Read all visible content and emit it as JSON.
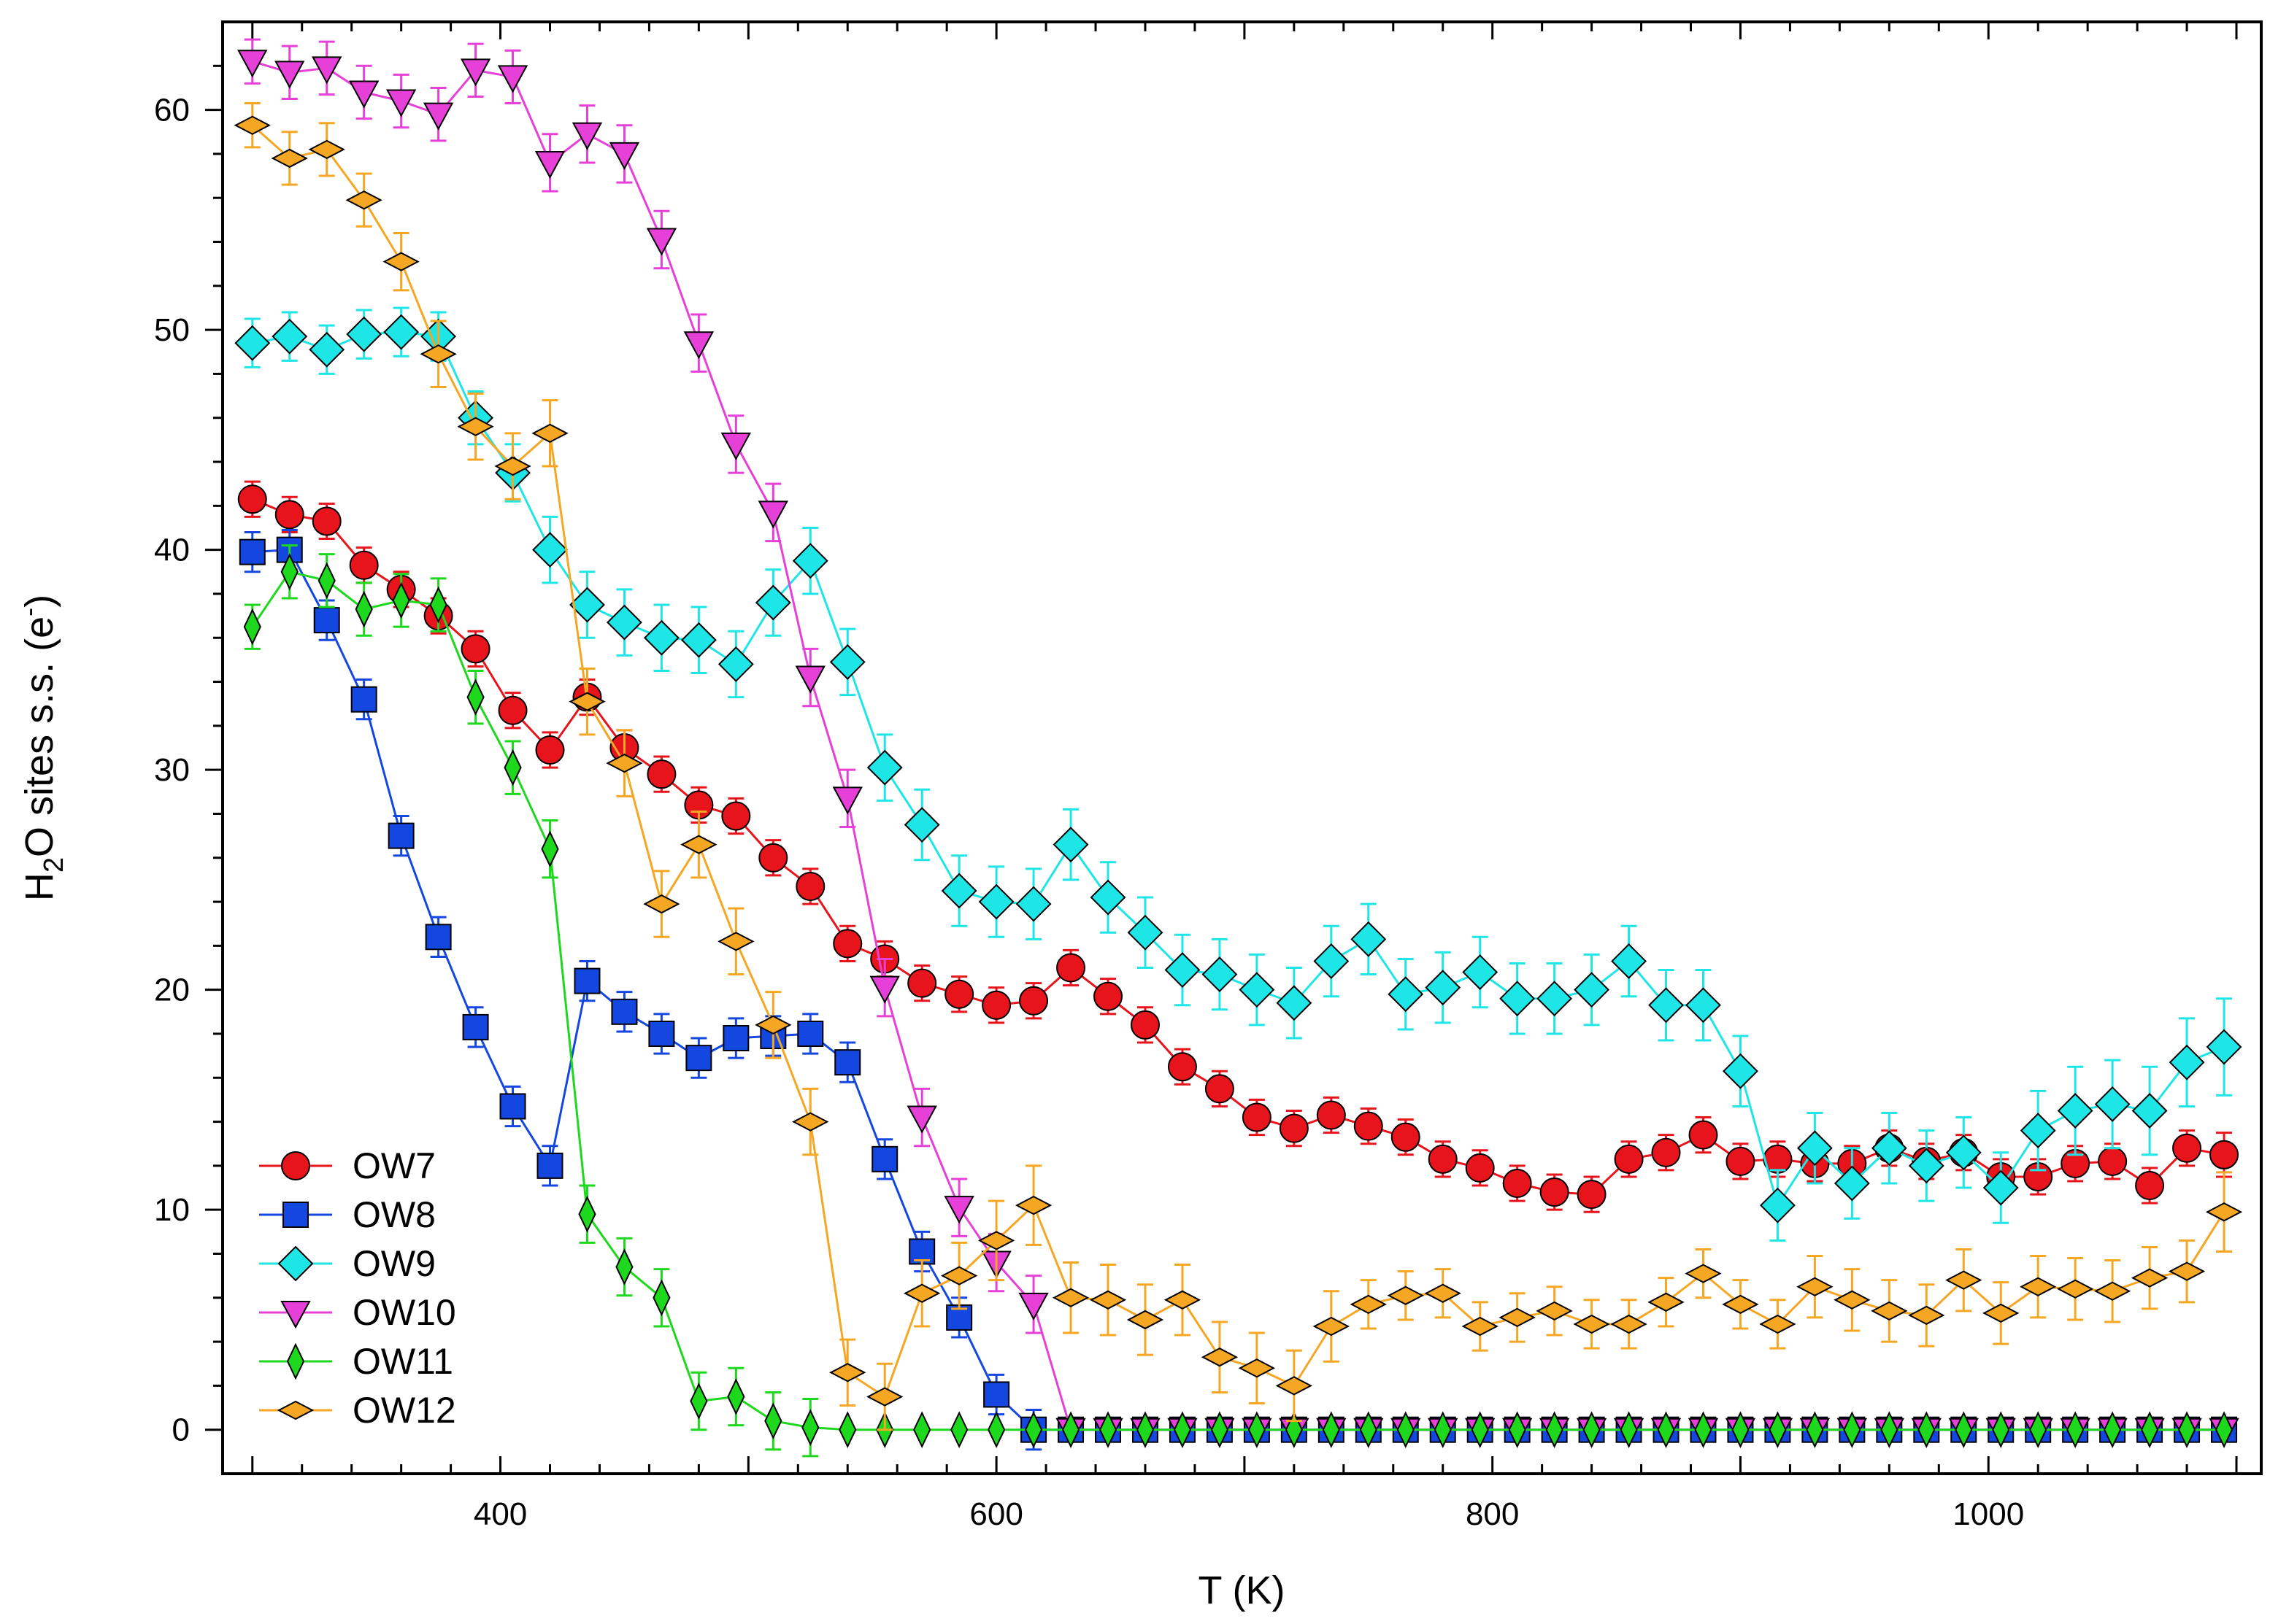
{
  "chart_data": {
    "type": "scatter",
    "title": "",
    "xlabel": "T (K)",
    "ylabel_parts": {
      "main": "H",
      "sub": "2",
      "rest": "O sites s.s. (e",
      "sup": "-",
      "close": ")"
    },
    "xlim": [
      288,
      1110
    ],
    "ylim": [
      -2,
      64
    ],
    "x_major_ticks": [
      400,
      600,
      800,
      1000
    ],
    "x_tick_labels": [
      "400",
      "600",
      "800",
      "1000"
    ],
    "y_major_ticks": [
      0,
      10,
      20,
      30,
      40,
      50,
      60
    ],
    "y_tick_labels": [
      "0",
      "10",
      "20",
      "30",
      "40",
      "50",
      "60"
    ],
    "legend_position": "bottom-left",
    "x": [
      300,
      315,
      330,
      345,
      360,
      375,
      390,
      405,
      420,
      435,
      450,
      465,
      480,
      495,
      510,
      525,
      540,
      555,
      570,
      585,
      600,
      615,
      630,
      645,
      660,
      675,
      690,
      705,
      720,
      735,
      750,
      765,
      780,
      795,
      810,
      825,
      840,
      855,
      870,
      885,
      900,
      915,
      930,
      945,
      960,
      975,
      990,
      1005,
      1020,
      1035,
      1050,
      1065,
      1080,
      1095
    ],
    "series": [
      {
        "name": "OW7",
        "color": "#e8141c",
        "marker": "circle",
        "values": [
          42.3,
          41.6,
          41.3,
          39.3,
          38.2,
          37.0,
          35.5,
          32.7,
          30.9,
          33.3,
          31.0,
          29.8,
          28.4,
          27.9,
          26.0,
          24.7,
          22.1,
          21.4,
          20.3,
          19.8,
          19.3,
          19.5,
          21.0,
          19.7,
          18.4,
          16.5,
          15.5,
          14.2,
          13.7,
          14.3,
          13.8,
          13.3,
          12.3,
          11.9,
          11.2,
          10.8,
          10.7,
          12.3,
          12.6,
          13.4,
          12.2,
          12.3,
          12.1,
          12.1,
          12.8,
          12.2,
          12.6,
          11.5,
          11.5,
          12.1,
          12.2,
          11.1,
          12.8,
          12.5
        ],
        "errors": [
          0.8,
          0.8,
          0.8,
          0.8,
          0.8,
          0.8,
          0.8,
          0.8,
          0.8,
          0.8,
          0.8,
          0.8,
          0.8,
          0.8,
          0.8,
          0.8,
          0.8,
          0.8,
          0.8,
          0.8,
          0.8,
          0.8,
          0.8,
          0.8,
          0.8,
          0.8,
          0.8,
          0.8,
          0.8,
          0.8,
          0.8,
          0.8,
          0.8,
          0.8,
          0.8,
          0.8,
          0.8,
          0.8,
          0.8,
          0.8,
          0.8,
          0.8,
          0.8,
          0.8,
          0.8,
          0.8,
          0.8,
          0.8,
          0.8,
          0.8,
          0.8,
          0.8,
          0.8,
          1.0
        ]
      },
      {
        "name": "OW8",
        "color": "#1447e0",
        "marker": "square",
        "values": [
          39.9,
          40.0,
          36.8,
          33.2,
          27.0,
          22.4,
          18.3,
          14.7,
          12.0,
          20.4,
          19.0,
          18.0,
          16.9,
          17.8,
          17.9,
          18.0,
          16.7,
          12.3,
          8.1,
          5.1,
          1.6,
          0,
          0,
          0,
          0,
          0,
          0,
          0,
          0,
          0,
          0,
          0,
          0,
          0,
          0,
          0,
          0,
          0,
          0,
          0,
          0,
          0,
          0,
          0,
          0,
          0,
          0,
          0,
          0,
          0,
          0,
          0,
          0,
          0
        ],
        "errors": [
          0.9,
          0.9,
          0.9,
          0.9,
          0.9,
          0.9,
          0.9,
          0.9,
          0.9,
          0.9,
          0.9,
          0.9,
          0.9,
          0.9,
          0.9,
          0.9,
          0.9,
          0.9,
          0.9,
          0.9,
          0.9,
          0.9,
          0,
          0,
          0,
          0,
          0,
          0,
          0,
          0,
          0,
          0,
          0,
          0,
          0,
          0,
          0,
          0,
          0,
          0,
          0,
          0,
          0,
          0,
          0,
          0,
          0,
          0,
          0,
          0,
          0,
          0,
          0,
          0
        ]
      },
      {
        "name": "OW9",
        "color": "#1ee6e6",
        "marker": "diamond",
        "values": [
          49.4,
          49.7,
          49.1,
          49.8,
          49.9,
          49.7,
          46.0,
          43.5,
          40.0,
          37.5,
          36.7,
          36.0,
          35.9,
          34.8,
          37.6,
          39.5,
          34.9,
          30.1,
          27.5,
          24.5,
          24.0,
          23.9,
          26.6,
          24.2,
          22.6,
          20.9,
          20.7,
          20.0,
          19.4,
          21.3,
          22.3,
          19.8,
          20.1,
          20.8,
          19.6,
          19.6,
          20.0,
          21.3,
          19.3,
          19.3,
          16.3,
          10.2,
          12.8,
          11.2,
          12.8,
          12.0,
          12.6,
          11.0,
          13.6,
          14.5,
          14.8,
          14.5,
          16.7,
          17.4
        ],
        "errors": [
          1.1,
          1.1,
          1.1,
          1.1,
          1.1,
          1.1,
          1.2,
          1.3,
          1.5,
          1.5,
          1.5,
          1.5,
          1.5,
          1.5,
          1.5,
          1.5,
          1.5,
          1.5,
          1.6,
          1.6,
          1.6,
          1.6,
          1.6,
          1.6,
          1.6,
          1.6,
          1.6,
          1.6,
          1.6,
          1.6,
          1.6,
          1.6,
          1.6,
          1.6,
          1.6,
          1.6,
          1.6,
          1.6,
          1.6,
          1.6,
          1.6,
          1.6,
          1.6,
          1.6,
          1.6,
          1.6,
          1.6,
          1.6,
          1.8,
          2.0,
          2.0,
          2.0,
          2.0,
          2.2
        ]
      },
      {
        "name": "OW10",
        "color": "#e640d8",
        "marker": "triangle-down",
        "values": [
          62.2,
          61.7,
          61.9,
          60.8,
          60.4,
          59.8,
          61.8,
          61.5,
          57.6,
          58.9,
          58.0,
          54.1,
          49.4,
          44.8,
          41.7,
          34.2,
          28.7,
          20.1,
          14.2,
          10.1,
          7.6,
          5.7,
          0,
          0,
          0,
          0,
          0,
          0,
          0,
          0,
          0,
          0,
          0,
          0,
          0,
          0,
          0,
          0,
          0,
          0,
          0,
          0,
          0,
          0,
          0,
          0,
          0,
          0,
          0,
          0,
          0,
          0,
          0,
          0
        ],
        "errors": [
          1.0,
          1.2,
          1.2,
          1.2,
          1.2,
          1.2,
          1.2,
          1.2,
          1.3,
          1.3,
          1.3,
          1.3,
          1.3,
          1.3,
          1.3,
          1.3,
          1.3,
          1.3,
          1.3,
          1.3,
          1.3,
          1.3,
          0,
          0,
          0,
          0,
          0,
          0,
          0,
          0,
          0,
          0,
          0,
          0,
          0,
          0,
          0,
          0,
          0,
          0,
          0,
          0,
          0,
          0,
          0,
          0,
          0,
          0,
          0,
          0,
          0,
          0,
          0,
          0
        ]
      },
      {
        "name": "OW11",
        "color": "#1ed81e",
        "marker": "thin-diamond",
        "values": [
          36.5,
          39.0,
          38.6,
          37.3,
          37.7,
          37.5,
          33.3,
          30.1,
          26.4,
          9.8,
          7.4,
          6.0,
          1.3,
          1.5,
          0.4,
          0.1,
          0,
          0,
          0,
          0,
          0,
          0,
          0,
          0,
          0,
          0,
          0,
          0,
          0,
          0,
          0,
          0,
          0,
          0,
          0,
          0,
          0,
          0,
          0,
          0,
          0,
          0,
          0,
          0,
          0,
          0,
          0,
          0,
          0,
          0,
          0,
          0,
          0,
          0
        ],
        "errors": [
          1.0,
          1.2,
          1.2,
          1.2,
          1.2,
          1.2,
          1.2,
          1.2,
          1.3,
          1.3,
          1.3,
          1.3,
          1.3,
          1.3,
          1.3,
          1.3,
          0,
          0,
          0,
          0,
          0,
          0,
          0,
          0,
          0,
          0,
          0,
          0,
          0,
          0,
          0,
          0,
          0,
          0,
          0,
          0,
          0,
          0,
          0,
          0,
          0,
          0,
          0,
          0,
          0,
          0,
          0,
          0,
          0,
          0,
          0,
          0,
          0,
          0
        ]
      },
      {
        "name": "OW12",
        "color": "#f5a623",
        "marker": "flat-diamond",
        "values": [
          59.3,
          57.8,
          58.2,
          55.9,
          53.1,
          48.9,
          45.6,
          43.8,
          45.3,
          33.1,
          30.3,
          23.9,
          26.6,
          22.2,
          18.4,
          14.0,
          2.6,
          1.5,
          6.2,
          7.0,
          8.6,
          10.2,
          6.0,
          5.9,
          5.0,
          5.9,
          3.3,
          2.8,
          2.0,
          4.7,
          5.7,
          6.1,
          6.2,
          4.7,
          5.1,
          5.4,
          4.8,
          4.8,
          5.8,
          7.1,
          5.7,
          4.8,
          6.5,
          5.9,
          5.4,
          5.2,
          6.8,
          5.3,
          6.5,
          6.4,
          6.3,
          6.9,
          7.2,
          9.9
        ],
        "errors": [
          1.0,
          1.2,
          1.2,
          1.2,
          1.3,
          1.5,
          1.5,
          1.5,
          1.5,
          1.5,
          1.5,
          1.5,
          1.5,
          1.5,
          1.5,
          1.5,
          1.5,
          1.5,
          1.5,
          1.5,
          1.8,
          1.8,
          1.6,
          1.6,
          1.6,
          1.6,
          1.6,
          1.6,
          1.6,
          1.6,
          1.1,
          1.1,
          1.1,
          1.1,
          1.1,
          1.1,
          1.1,
          1.1,
          1.1,
          1.1,
          1.1,
          1.1,
          1.4,
          1.4,
          1.4,
          1.4,
          1.4,
          1.4,
          1.4,
          1.4,
          1.4,
          1.4,
          1.4,
          1.8
        ]
      }
    ]
  }
}
